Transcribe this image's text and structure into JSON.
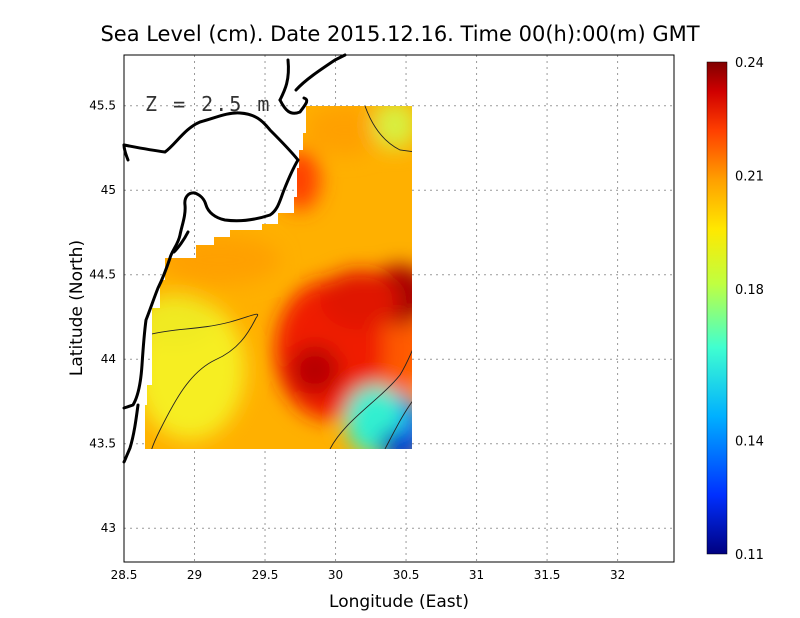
{
  "title": "Sea Level (cm). Date 2015.12.16. Time 00(h):00(m) GMT",
  "depth_annotation": "Z = 2.5 m",
  "x_axis": {
    "label": "Longitude (East)",
    "range": [
      28.5,
      32.4
    ],
    "ticks": [
      28.5,
      29,
      29.5,
      30,
      30.5,
      31,
      31.5,
      32
    ],
    "tick_labels": [
      "28.5",
      "29",
      "29.5",
      "30",
      "30.5",
      "31",
      "31.5",
      "32"
    ]
  },
  "y_axis": {
    "label": "Latitude (North)",
    "range": [
      42.8,
      45.8
    ],
    "ticks": [
      43,
      43.5,
      44,
      44.5,
      45,
      45.5
    ],
    "tick_labels": [
      "43",
      "43.5",
      "44",
      "44.5",
      "45",
      "45.5"
    ]
  },
  "colorbar": {
    "range": [
      0.11,
      0.24
    ],
    "tick_values": [
      0.11,
      0.14,
      0.18,
      0.21,
      0.24
    ],
    "tick_labels": [
      "0.11",
      "0.14",
      "0.18",
      "0.21",
      "0.24"
    ],
    "colors": [
      "#000080",
      "#0040ff",
      "#00c0ff",
      "#40ffc0",
      "#c0ff40",
      "#ffe000",
      "#ff9000",
      "#ff2000",
      "#b00000",
      "#800000"
    ]
  },
  "chart_data": {
    "type": "heatmap",
    "grid": "dotted",
    "data_extent": {
      "lon": [
        28.65,
        30.55
      ],
      "lat": [
        43.5,
        45.5
      ]
    },
    "field_hotspots": [
      {
        "lon": 30.45,
        "lat": 44.4,
        "value": 0.235
      },
      {
        "lon": 29.85,
        "lat": 43.95,
        "value": 0.232
      },
      {
        "lon": 29.75,
        "lat": 44.2,
        "value": 0.228
      },
      {
        "lon": 30.2,
        "lat": 44.55,
        "value": 0.226
      },
      {
        "lon": 29.8,
        "lat": 45.05,
        "value": 0.222
      },
      {
        "lon": 30.1,
        "lat": 45.3,
        "value": 0.214
      },
      {
        "lon": 28.95,
        "lat": 44.2,
        "value": 0.198
      },
      {
        "lon": 28.9,
        "lat": 43.8,
        "value": 0.197
      },
      {
        "lon": 30.5,
        "lat": 45.45,
        "value": 0.19
      },
      {
        "lon": 30.5,
        "lat": 43.55,
        "value": 0.13
      },
      {
        "lon": 30.4,
        "lat": 43.75,
        "value": 0.165
      }
    ]
  }
}
